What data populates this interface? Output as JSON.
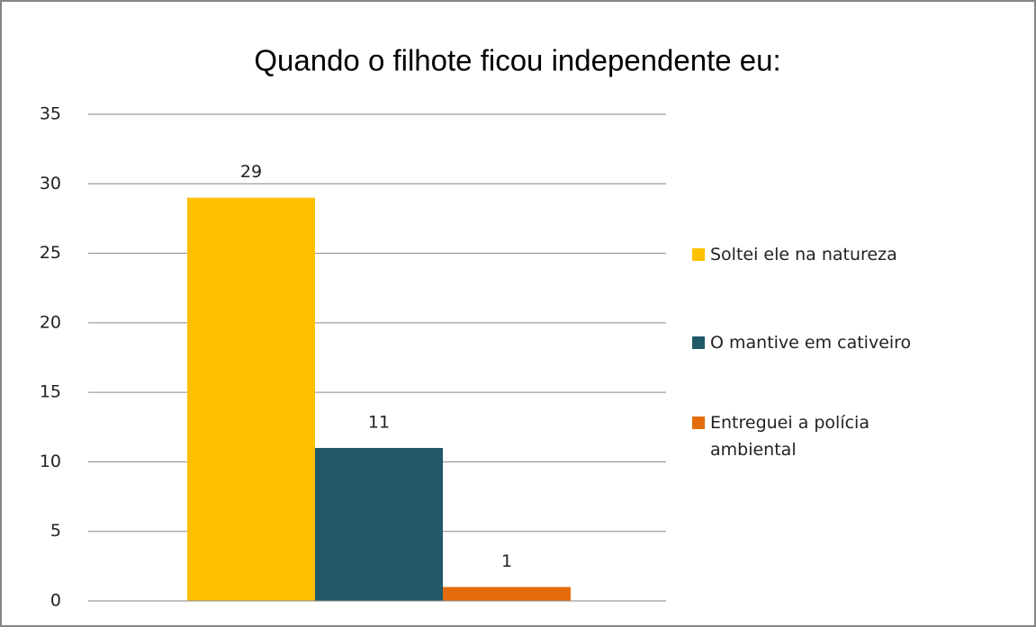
{
  "chart_data": {
    "type": "bar",
    "title": "Quando o filhote ficou independente eu:",
    "categories": [
      null
    ],
    "series": [
      {
        "name": "Soltei ele na natureza",
        "color": "#ffc000",
        "values": [
          29
        ]
      },
      {
        "name": "O mantive em cativeiro",
        "color": "#215968",
        "values": [
          11
        ]
      },
      {
        "name": "Entreguei a polícia ambiental",
        "color": "#e46c0a",
        "values": [
          1
        ]
      }
    ],
    "ylim": [
      0,
      35
    ],
    "yticks": [
      0,
      5,
      10,
      15,
      20,
      25,
      30,
      35
    ],
    "grid": true,
    "legend": "right",
    "data_labels": true
  }
}
